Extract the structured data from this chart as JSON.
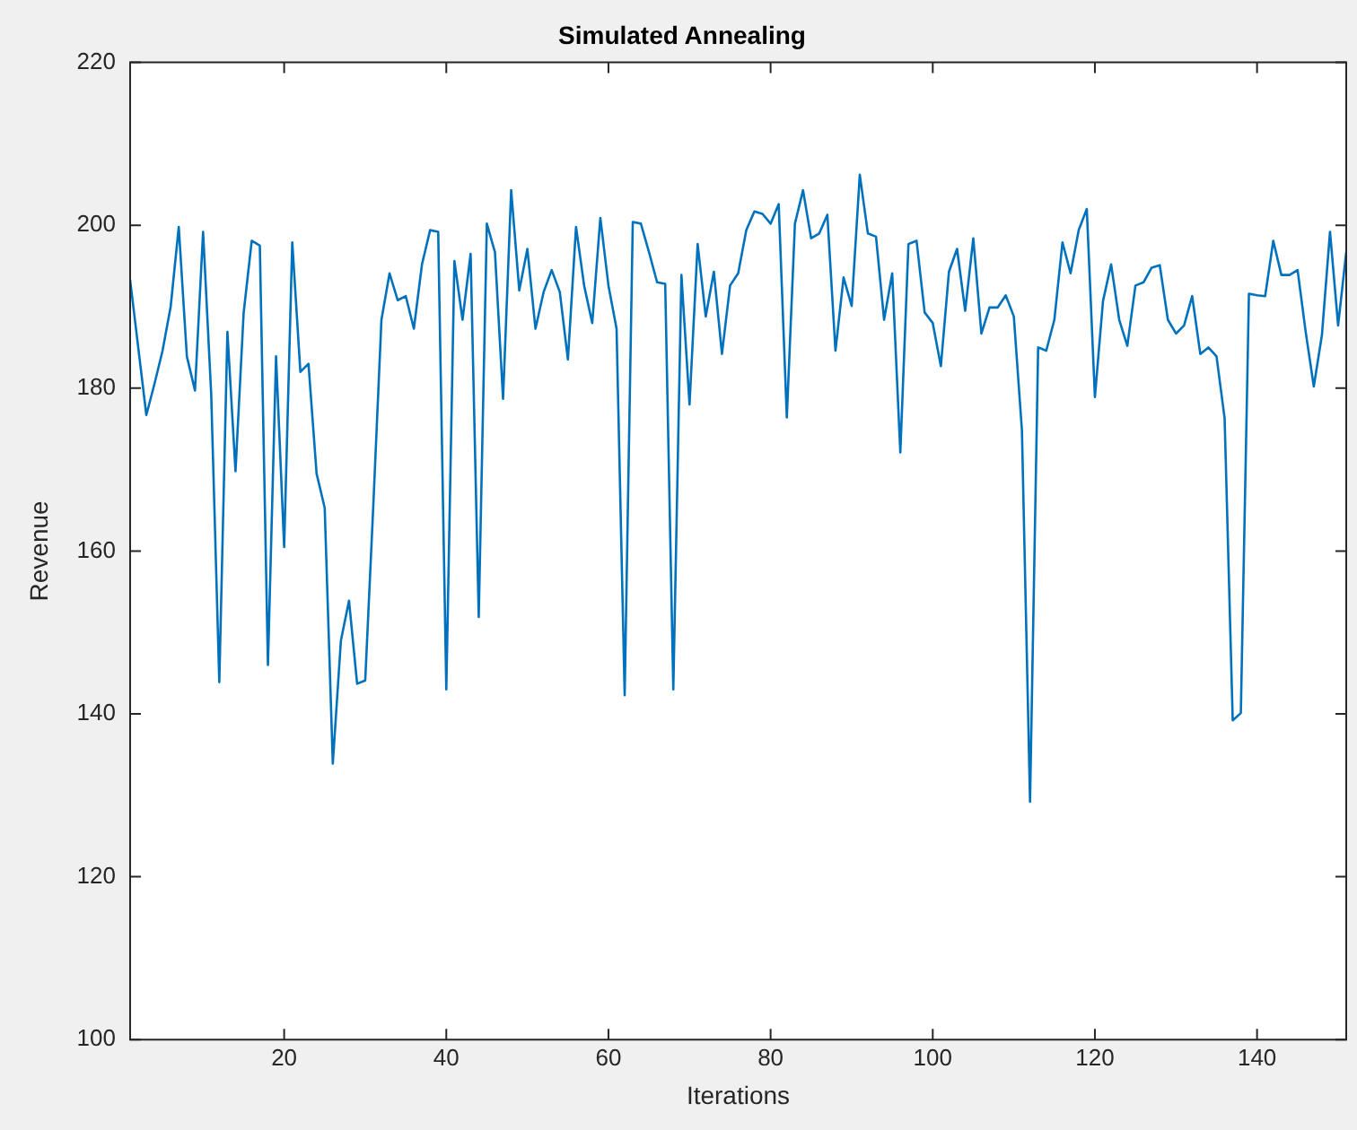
{
  "chart_data": {
    "type": "line",
    "title": "Simulated Annealing",
    "xlabel": "Iterations",
    "ylabel": "Revenue",
    "x": [
      1,
      2,
      3,
      4,
      5,
      6,
      7,
      8,
      9,
      10,
      11,
      12,
      13,
      14,
      15,
      16,
      17,
      18,
      19,
      20,
      21,
      22,
      23,
      24,
      25,
      26,
      27,
      28,
      29,
      30,
      31,
      32,
      33,
      34,
      35,
      36,
      37,
      38,
      39,
      40,
      41,
      42,
      43,
      44,
      45,
      46,
      47,
      48,
      49,
      50,
      51,
      52,
      53,
      54,
      55,
      56,
      57,
      58,
      59,
      60,
      61,
      62,
      63,
      64,
      65,
      66,
      67,
      68,
      69,
      70,
      71,
      72,
      73,
      74,
      75,
      76,
      77,
      78,
      79,
      80,
      81,
      82,
      83,
      84,
      85,
      86,
      87,
      88,
      89,
      90,
      91,
      92,
      93,
      94,
      95,
      96,
      97,
      98,
      99,
      100,
      101,
      102,
      103,
      104,
      105,
      106,
      107,
      108,
      109,
      110,
      111,
      112,
      113,
      114,
      115,
      116,
      117,
      118,
      119,
      120,
      121,
      122,
      123,
      124,
      125,
      126,
      127,
      128,
      129,
      130,
      131,
      132,
      133,
      134,
      135,
      136,
      137,
      138,
      139,
      140,
      141,
      142,
      143,
      144,
      145,
      146,
      147,
      148,
      149,
      150,
      151
    ],
    "series": [
      {
        "color": "#0072bd",
        "values": [
          193.3,
          185,
          176.7,
          180.5,
          184.6,
          190,
          199.8,
          183.9,
          179.7,
          199.2,
          179.3,
          143.9,
          186.9,
          169.8,
          189.2,
          198.1,
          197.5,
          146,
          183.9,
          160.5,
          197.9,
          182,
          183,
          169.5,
          165.3,
          133.9,
          149,
          153.9,
          143.7,
          144.1,
          165.7,
          188.4,
          194.1,
          190.8,
          191.3,
          187.3,
          195.2,
          199.4,
          199.2,
          143,
          195.6,
          188.4,
          196.5,
          151.9,
          200.2,
          196.7,
          178.7,
          204.3,
          192,
          197.1,
          187.3,
          191.8,
          194.5,
          191.8,
          183.5,
          199.8,
          192.6,
          188,
          200.9,
          192.6,
          187.3,
          142.3,
          200.4,
          200.2,
          196.7,
          193,
          192.8,
          143,
          193.9,
          178,
          197.7,
          188.8,
          194.3,
          184.2,
          192.6,
          194.1,
          199.4,
          201.7,
          201.4,
          200.2,
          202.6,
          176.4,
          200.2,
          204.3,
          198.4,
          199,
          201.3,
          184.6,
          193.6,
          190.1,
          206.2,
          199,
          198.6,
          188.4,
          194.1,
          172.1,
          197.7,
          198.1,
          189.3,
          188,
          182.7,
          194.3,
          197.1,
          189.5,
          198.4,
          186.7,
          189.9,
          189.9,
          191.4,
          188.8,
          174.8,
          129.2,
          185,
          184.6,
          188.4,
          197.9,
          194.1,
          199.4,
          202,
          178.9,
          190.7,
          195.2,
          188.4,
          185.2,
          192.6,
          193,
          194.8,
          195.1,
          188.4,
          186.7,
          187.7,
          191.3,
          184.2,
          185,
          183.9,
          176.3,
          139.2,
          140.1,
          191.6,
          191.4,
          191.3,
          198.1,
          193.9,
          193.9,
          194.5,
          186.9,
          180.2,
          186.5,
          199.2,
          187.7,
          196.7
        ]
      }
    ],
    "xlim": [
      1,
      151
    ],
    "xticks": [
      20,
      40,
      60,
      80,
      100,
      120,
      140
    ],
    "ylim": [
      100,
      220
    ],
    "yticks": [
      100,
      120,
      140,
      160,
      180,
      200,
      220
    ],
    "grid": false,
    "legend": false,
    "marker": "none",
    "line_style": "solid"
  }
}
